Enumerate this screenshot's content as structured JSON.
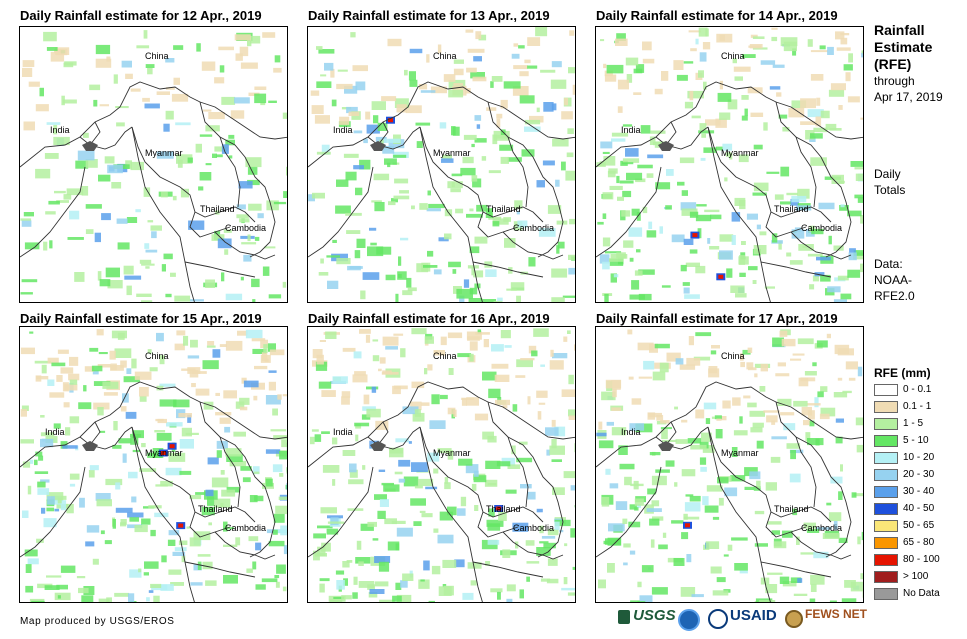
{
  "panels": [
    {
      "title": "Daily Rainfall estimate for 12 Apr., 2019",
      "intensity": 0.25,
      "heavy": 0
    },
    {
      "title": "Daily Rainfall estimate for 13 Apr., 2019",
      "intensity": 0.45,
      "heavy": 1
    },
    {
      "title": "Daily Rainfall estimate for 14 Apr., 2019",
      "intensity": 0.6,
      "heavy": 2
    },
    {
      "title": "Daily Rainfall estimate for 15 Apr., 2019",
      "intensity": 0.75,
      "heavy": 3
    },
    {
      "title": "Daily Rainfall estimate for 16 Apr., 2019",
      "intensity": 0.65,
      "heavy": 1
    },
    {
      "title": "Daily Rainfall estimate for 17 Apr., 2019",
      "intensity": 0.55,
      "heavy": 1
    }
  ],
  "map_labels": {
    "china": "China",
    "india": "India",
    "myanmar": "Myanmar",
    "thailand": "Thailand",
    "cambodia": "Cambodia"
  },
  "sidebar": {
    "title_line1": "Rainfall",
    "title_line2": "Estimate",
    "title_line3": "(RFE)",
    "through": "through",
    "date": "Apr 17, 2019",
    "totals_line1": "Daily",
    "totals_line2": "Totals",
    "data_line1": "Data:",
    "data_line2": "NOAA-",
    "data_line3": "RFE2.0"
  },
  "legend": {
    "title": "RFE (mm)",
    "items": [
      {
        "label": "0 - 0.1",
        "color": "#ffffff"
      },
      {
        "label": "0.1 - 1",
        "color": "#f0dcb4"
      },
      {
        "label": "1 - 5",
        "color": "#b4f0a0"
      },
      {
        "label": "5 - 10",
        "color": "#64e664"
      },
      {
        "label": "10 - 20",
        "color": "#b4f0f5"
      },
      {
        "label": "20 - 30",
        "color": "#96d2f0"
      },
      {
        "label": "30 - 40",
        "color": "#5aa0eb"
      },
      {
        "label": "40 - 50",
        "color": "#1e50dc"
      },
      {
        "label": "50 - 65",
        "color": "#fae678"
      },
      {
        "label": "65 - 80",
        "color": "#fa9600"
      },
      {
        "label": "80 - 100",
        "color": "#e61400"
      },
      {
        "label": "> 100",
        "color": "#a01e1e"
      },
      {
        "label": "No Data",
        "color": "#999999"
      }
    ]
  },
  "credit": "Map produced by USGS/EROS",
  "logos": {
    "usgs": "USGS",
    "usaid": "USAID",
    "fewsnet": "FEWS NET"
  }
}
